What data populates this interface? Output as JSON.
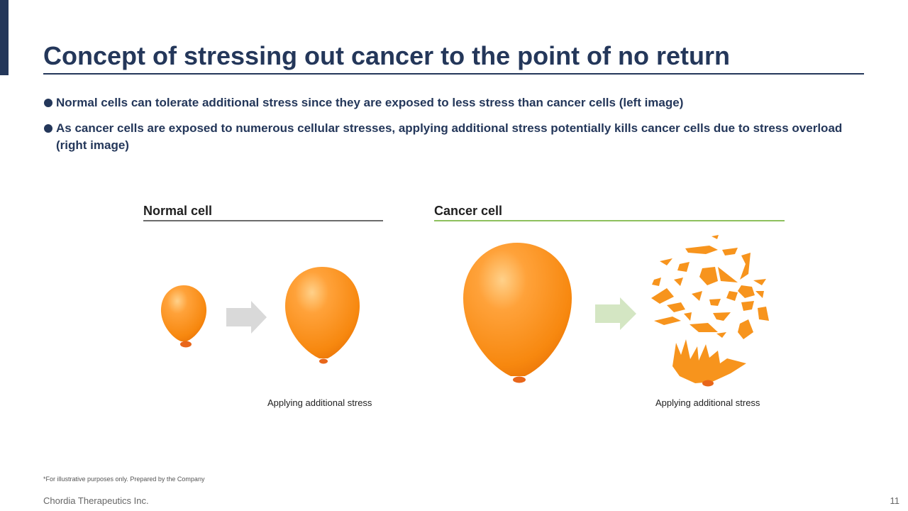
{
  "slide": {
    "title": "Concept of stressing out cancer to the point of no return",
    "bullets": [
      "Normal cells can tolerate additional stress since they are exposed to less stress than cancer cells (left image)",
      "As cancer cells are exposed to numerous cellular stresses, applying additional stress potentially kills cancer cells due to stress overload  (right image)"
    ]
  },
  "panels": {
    "normal": {
      "title": "Normal cell",
      "caption": "Applying additional stress"
    },
    "cancer": {
      "title": "Cancer cell",
      "caption": "Applying additional stress"
    }
  },
  "colors": {
    "navy": "#24375a",
    "balloon": "#f7941d",
    "normal_rule": "#6b6b6b",
    "cancer_rule": "#8dc05e",
    "arrow_gray": "#d9d9d9",
    "arrow_green": "#d4e6c3"
  },
  "footer": {
    "note": "*For illustrative purposes only. Prepared by the Company",
    "company": "Chordia Therapeutics Inc.",
    "page": "11"
  }
}
